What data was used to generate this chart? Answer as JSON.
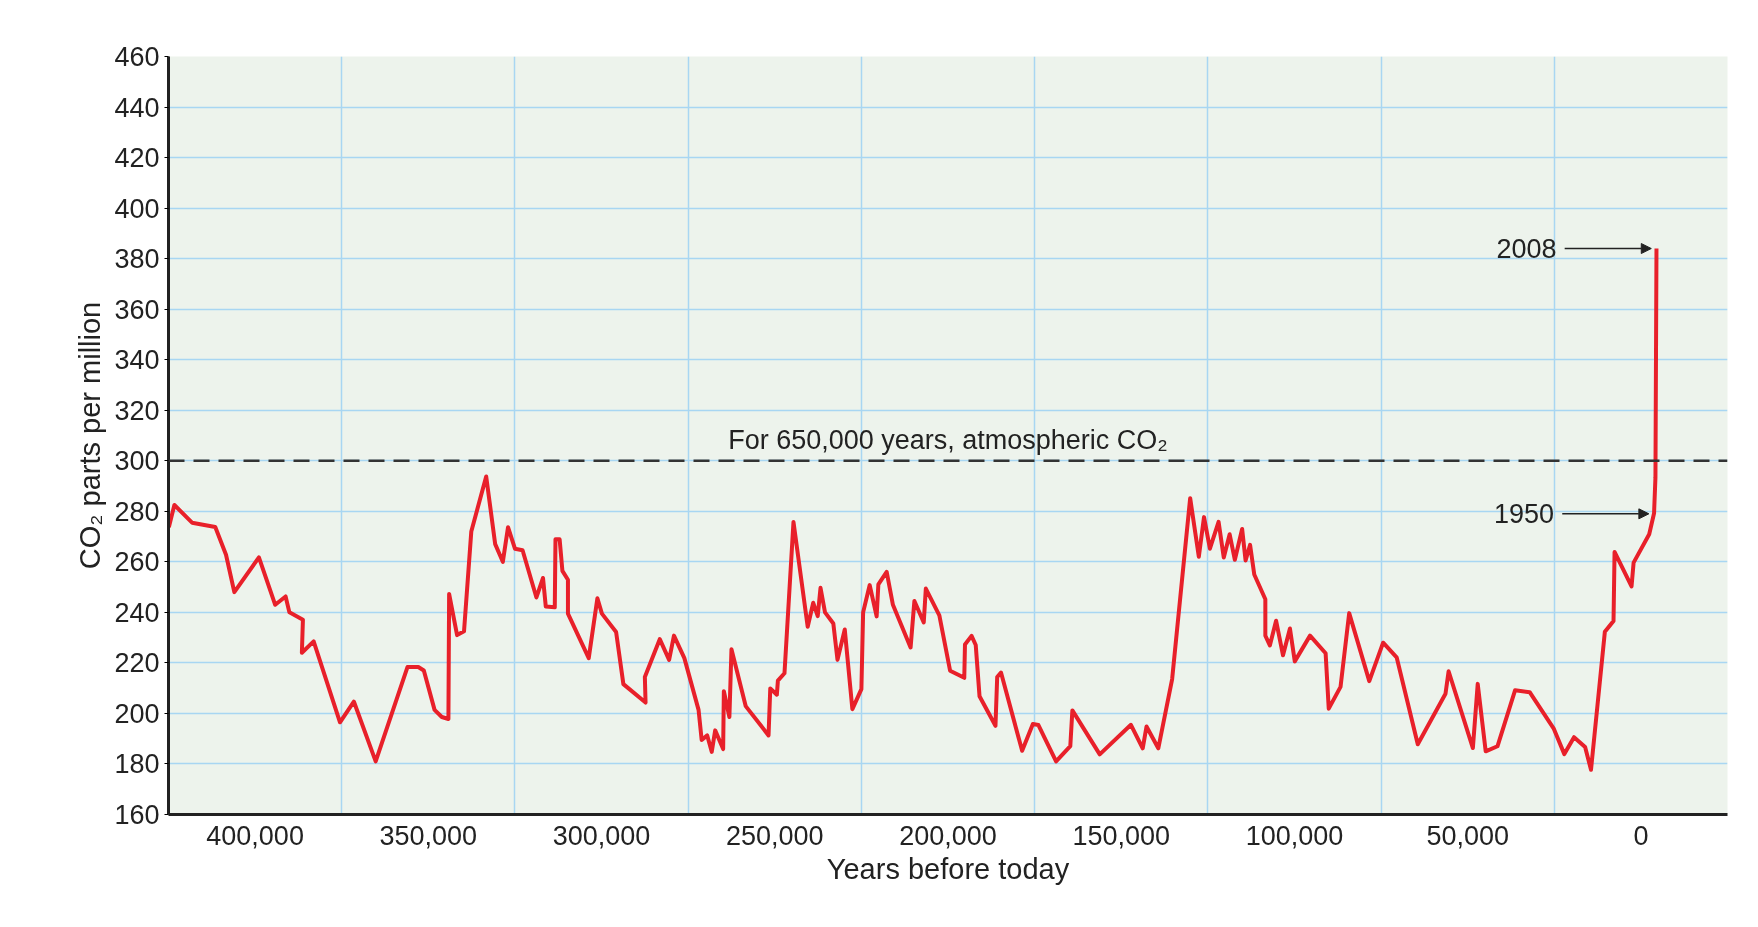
{
  "chart_data": {
    "type": "line",
    "xlabel": "Years before today",
    "ylabel": "CO₂ parts per million",
    "xlim": [
      425000,
      -25000
    ],
    "ylim": [
      160,
      460
    ],
    "xticks": [
      {
        "value": 400000,
        "label": "400,000"
      },
      {
        "value": 350000,
        "label": "350,000"
      },
      {
        "value": 300000,
        "label": "300,000"
      },
      {
        "value": 250000,
        "label": "250,000"
      },
      {
        "value": 200000,
        "label": "200,000"
      },
      {
        "value": 150000,
        "label": "150,000"
      },
      {
        "value": 100000,
        "label": "100,000"
      },
      {
        "value": 50000,
        "label": "50,000"
      },
      {
        "value": 0,
        "label": "0"
      },
      {
        "value": 375000,
        "label": null
      },
      {
        "value": 325000,
        "label": null
      },
      {
        "value": 275000,
        "label": null
      },
      {
        "value": 225000,
        "label": null
      },
      {
        "value": 175000,
        "label": null
      },
      {
        "value": 125000,
        "label": null
      },
      {
        "value": 75000,
        "label": null
      },
      {
        "value": 25000,
        "label": null
      }
    ],
    "yticks": [
      160,
      180,
      200,
      220,
      240,
      260,
      280,
      300,
      320,
      340,
      360,
      380,
      400,
      420,
      440,
      460
    ],
    "grid": true,
    "marker": "none",
    "line_style": "solid",
    "ref_lines": [
      {
        "axis": "y",
        "value": 300,
        "label": "For 650,000 years, atmospheric CO₂",
        "color": "#333333",
        "line_style": "dashed"
      }
    ],
    "annotations": [
      {
        "text": "2008",
        "x": -4500,
        "y": 384
      },
      {
        "text": "1950",
        "x": -3800,
        "y": 279
      }
    ],
    "series": [
      {
        "color": "#e8202a",
        "x": [
          424900,
          423300,
          418200,
          411500,
          408400,
          406000,
          398900,
          394200,
          391200,
          390100,
          386200,
          386500,
          383100,
          375500,
          371500,
          365200,
          356000,
          352900,
          351300,
          348200,
          346100,
          344200,
          344000,
          341700,
          339700,
          337600,
          333300,
          330700,
          328500,
          327000,
          325000,
          322800,
          318800,
          316900,
          316100,
          313500,
          313300,
          312100,
          311300,
          309700,
          309700,
          303700,
          301200,
          299900,
          295800,
          293700,
          287300,
          287500,
          283200,
          280500,
          279100,
          276100,
          272000,
          271100,
          269500,
          268200,
          267200,
          264900,
          264700,
          263100,
          262500,
          258400,
          251800,
          251300,
          249400,
          249100,
          247200,
          244600,
          240500,
          238900,
          237600,
          236800,
          235500,
          233100,
          231900,
          229800,
          227600,
          225000,
          224500,
          222600,
          220600,
          220100,
          217700,
          215900,
          210800,
          209700,
          207000,
          206400,
          202500,
          199400,
          195300,
          195100,
          193200,
          192000,
          190900,
          186300,
          185800,
          184700,
          178600,
          175500,
          173900,
          168800,
          164700,
          164100,
          156200,
          147200,
          143800,
          142700,
          139300,
          135300,
          130100,
          127600,
          126100,
          124400,
          121900,
          120400,
          118700,
          117200,
          115100,
          114100,
          112800,
          111600,
          108400,
          108400,
          107100,
          105300,
          103300,
          101300,
          99900,
          95500,
          91000,
          90100,
          86700,
          84200,
          78400,
          74400,
          70500,
          64400,
          56400,
          55500,
          48500,
          47100,
          44800,
          41400,
          36300,
          32100,
          25200,
          22100,
          19300,
          16100,
          14400,
          10400,
          7900,
          7600,
          2700,
          2100,
          -2400,
          -3800,
          -4200,
          -4500
        ],
        "values": [
          273.7,
          282.5,
          275.5,
          273.8,
          262.8,
          248,
          261.8,
          243,
          246.3,
          240,
          237.1,
          224,
          228.5,
          196.5,
          204.7,
          181,
          218.4,
          218.4,
          217,
          201.4,
          198.6,
          197.8,
          247.3,
          231,
          232.5,
          272,
          293.8,
          267,
          260,
          273.7,
          265.2,
          264.6,
          245.9,
          253.6,
          242.3,
          242,
          268.9,
          268.9,
          256.4,
          252.9,
          239.5,
          221.9,
          245.6,
          239.5,
          232.2,
          211.6,
          204.3,
          214.4,
          229.4,
          221.2,
          230.8,
          221.9,
          201.4,
          189.5,
          191.3,
          184.8,
          193.3,
          185.9,
          208.8,
          198.6,
          225.4,
          202.9,
          191.3,
          209.9,
          207.4,
          213,
          215.9,
          275.8,
          234.3,
          243.8,
          238.5,
          249.7,
          240,
          235.6,
          221.2,
          233.2,
          201.7,
          209.6,
          240,
          250.8,
          238.4,
          251.1,
          256,
          243,
          226.1,
          244.5,
          236,
          249.4,
          238.8,
          216.9,
          214.1,
          227.3,
          230.7,
          227.1,
          206.8,
          195.1,
          214.4,
          216.2,
          185.2,
          195.8,
          195.4,
          181,
          187.1,
          201.2,
          183.8,
          195.5,
          186.2,
          194.8,
          186.2,
          213.6,
          285.2,
          262,
          277.7,
          265.2,
          275.8,
          261.7,
          270.9,
          260.8,
          273,
          260.5,
          266.7,
          255,
          245.2,
          230.8,
          226.9,
          236.7,
          223,
          233.6,
          220.6,
          230.8,
          223.8,
          201.9,
          210.5,
          239.7,
          212.8,
          228,
          222.2,
          187.8,
          207.8,
          216.7,
          186.3,
          211.7,
          185,
          187,
          209.2,
          208.4,
          194.1,
          183.9,
          190.6,
          186.7,
          177.7,
          232.3,
          236.6,
          263.9,
          250.3,
          259.7,
          270.9,
          279.2,
          293.3,
          384
        ]
      }
    ]
  }
}
